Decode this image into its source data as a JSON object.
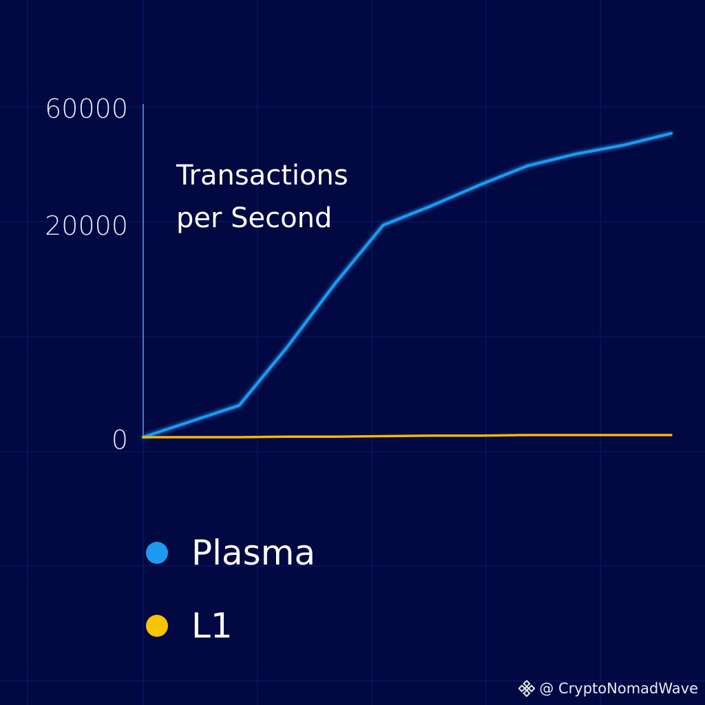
{
  "chart_data": {
    "type": "line",
    "title": "",
    "xlabel": "",
    "ylabel": [
      "Transactions",
      "per Second"
    ],
    "ytick_labels": [
      "60000",
      "20000",
      "0"
    ],
    "x": [
      0,
      1,
      2,
      3,
      4,
      5,
      6,
      7,
      8,
      9,
      10,
      11
    ],
    "series": [
      {
        "name": "Plasma",
        "color": "#1e9bf0",
        "values": [
          0,
          1500,
          3000,
          8500,
          14500,
          20000,
          26500,
          33500,
          40000,
          44000,
          47000,
          51000
        ]
      },
      {
        "name": "L1",
        "color": "#f6b800",
        "values": [
          0,
          0,
          0,
          50,
          50,
          100,
          150,
          150,
          200,
          200,
          200,
          200
        ]
      }
    ],
    "grid": true,
    "legend_position": "bottom-left"
  },
  "colors": {
    "background": "#020842",
    "grid": "#0c1a6a",
    "axis": "#4a78c8",
    "plasma": "#1e9bf0",
    "l1": "#f6b800"
  },
  "legend": {
    "items": [
      {
        "label": "Plasma",
        "color": "#1e9bf0"
      },
      {
        "label": "L1",
        "color": "#f6c400"
      }
    ]
  },
  "watermark": {
    "icon": "binance-logo-icon",
    "text": "@ CryptoNomadWave"
  }
}
